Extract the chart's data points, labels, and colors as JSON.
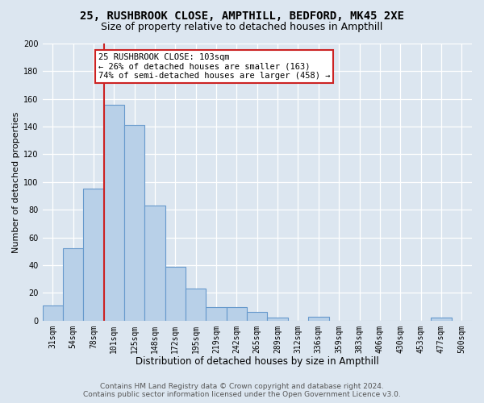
{
  "title1": "25, RUSHBROOK CLOSE, AMPTHILL, BEDFORD, MK45 2XE",
  "title2": "Size of property relative to detached houses in Ampthill",
  "xlabel": "Distribution of detached houses by size in Ampthill",
  "ylabel": "Number of detached properties",
  "footer": "Contains HM Land Registry data © Crown copyright and database right 2024.\nContains public sector information licensed under the Open Government Licence v3.0.",
  "bar_labels": [
    "31sqm",
    "54sqm",
    "78sqm",
    "101sqm",
    "125sqm",
    "148sqm",
    "172sqm",
    "195sqm",
    "219sqm",
    "242sqm",
    "265sqm",
    "289sqm",
    "312sqm",
    "336sqm",
    "359sqm",
    "383sqm",
    "406sqm",
    "430sqm",
    "453sqm",
    "477sqm",
    "500sqm"
  ],
  "bar_values": [
    11,
    52,
    95,
    156,
    141,
    83,
    39,
    23,
    10,
    10,
    6,
    2,
    0,
    3,
    0,
    0,
    0,
    0,
    0,
    2,
    0
  ],
  "bar_color": "#b8d0e8",
  "bar_edgecolor": "#6699cc",
  "ylim": [
    0,
    200
  ],
  "yticks": [
    0,
    20,
    40,
    60,
    80,
    100,
    120,
    140,
    160,
    180,
    200
  ],
  "red_line_color": "#cc2222",
  "bg_color": "#dce6f0",
  "grid_color": "#ffffff",
  "title1_fontsize": 10,
  "title2_fontsize": 9,
  "xlabel_fontsize": 8.5,
  "ylabel_fontsize": 8,
  "tick_fontsize": 7,
  "footer_fontsize": 6.5,
  "annotation_line1": "25 RUSHBROOK CLOSE: 103sqm",
  "annotation_line2": "← 26% of detached houses are smaller (163)",
  "annotation_line3": "74% of semi-detached houses are larger (458) →",
  "annotation_border_color": "#cc2222",
  "red_line_bar_index": 3
}
